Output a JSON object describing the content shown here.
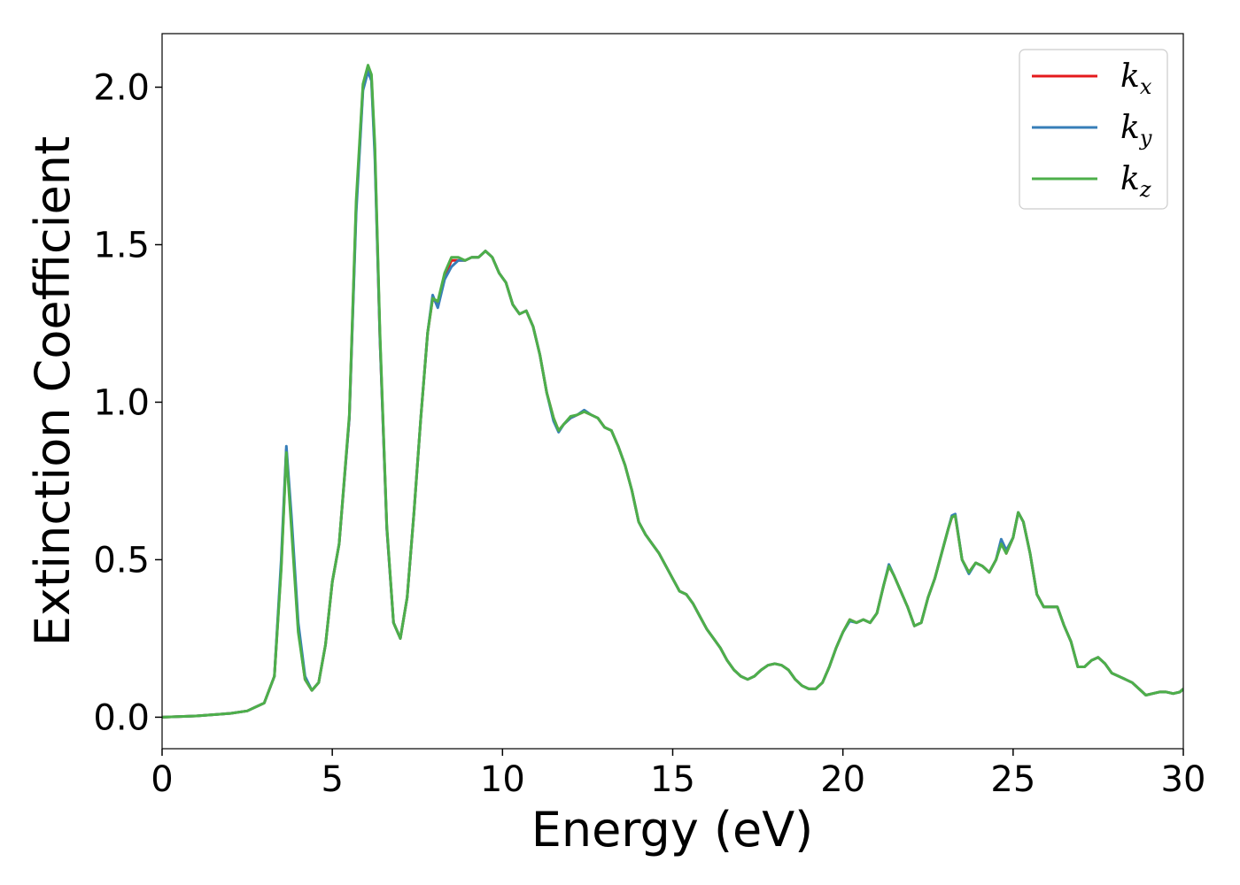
{
  "chart_data": {
    "type": "line",
    "title": "",
    "xlabel": "Energy (eV)",
    "ylabel": "Extinction Coefficient",
    "xlim": [
      0,
      30
    ],
    "ylim": [
      -0.1,
      2.17
    ],
    "xticks": [
      0,
      5,
      10,
      15,
      20,
      25,
      30
    ],
    "xtick_labels": [
      "0",
      "5",
      "10",
      "15",
      "20",
      "25",
      "30"
    ],
    "yticks": [
      0.0,
      0.5,
      1.0,
      1.5,
      2.0
    ],
    "ytick_labels": [
      "0.0",
      "0.5",
      "1.0",
      "1.5",
      "2.0"
    ],
    "grid": false,
    "legend_position": "top-right",
    "x": [
      0,
      1,
      2,
      2.5,
      3,
      3.3,
      3.5,
      3.65,
      3.8,
      4.0,
      4.2,
      4.4,
      4.6,
      4.8,
      5.0,
      5.2,
      5.5,
      5.7,
      5.9,
      6.05,
      6.15,
      6.25,
      6.4,
      6.6,
      6.8,
      7.0,
      7.2,
      7.4,
      7.6,
      7.8,
      7.95,
      8.1,
      8.3,
      8.5,
      8.7,
      8.9,
      9.1,
      9.3,
      9.5,
      9.7,
      9.9,
      10.1,
      10.3,
      10.5,
      10.7,
      10.9,
      11.1,
      11.3,
      11.5,
      11.65,
      11.8,
      12.0,
      12.2,
      12.4,
      12.6,
      12.8,
      13.0,
      13.2,
      13.4,
      13.6,
      13.8,
      14.0,
      14.2,
      14.4,
      14.6,
      14.8,
      15.0,
      15.2,
      15.4,
      15.6,
      15.8,
      16.0,
      16.2,
      16.4,
      16.6,
      16.8,
      17.0,
      17.2,
      17.4,
      17.6,
      17.8,
      18.0,
      18.2,
      18.4,
      18.6,
      18.8,
      19.0,
      19.2,
      19.4,
      19.6,
      19.8,
      20.0,
      20.2,
      20.4,
      20.6,
      20.8,
      21.0,
      21.2,
      21.35,
      21.5,
      21.7,
      21.9,
      22.1,
      22.3,
      22.5,
      22.7,
      22.9,
      23.1,
      23.2,
      23.3,
      23.5,
      23.7,
      23.9,
      24.1,
      24.3,
      24.5,
      24.65,
      24.8,
      25.0,
      25.15,
      25.3,
      25.5,
      25.7,
      25.9,
      26.1,
      26.3,
      26.5,
      26.7,
      26.9,
      27.1,
      27.3,
      27.5,
      27.7,
      27.9,
      28.1,
      28.3,
      28.5,
      28.7,
      28.9,
      29.1,
      29.3,
      29.5,
      29.7,
      29.9,
      30
    ],
    "series": [
      {
        "name": "k",
        "subscript": "x",
        "color": "#e41a1c",
        "values": [
          0.0,
          0.004,
          0.012,
          0.02,
          0.045,
          0.13,
          0.48,
          0.85,
          0.62,
          0.28,
          0.12,
          0.085,
          0.11,
          0.23,
          0.43,
          0.55,
          0.95,
          1.62,
          2.0,
          2.06,
          2.03,
          1.8,
          1.2,
          0.6,
          0.3,
          0.25,
          0.38,
          0.65,
          0.95,
          1.22,
          1.33,
          1.31,
          1.4,
          1.45,
          1.45,
          1.45,
          1.46,
          1.46,
          1.48,
          1.46,
          1.41,
          1.38,
          1.31,
          1.28,
          1.29,
          1.24,
          1.15,
          1.03,
          0.95,
          0.91,
          0.93,
          0.95,
          0.96,
          0.97,
          0.96,
          0.95,
          0.92,
          0.91,
          0.86,
          0.8,
          0.72,
          0.62,
          0.58,
          0.55,
          0.52,
          0.48,
          0.44,
          0.4,
          0.39,
          0.36,
          0.32,
          0.28,
          0.25,
          0.22,
          0.18,
          0.15,
          0.13,
          0.12,
          0.13,
          0.15,
          0.165,
          0.17,
          0.165,
          0.15,
          0.12,
          0.1,
          0.09,
          0.09,
          0.11,
          0.16,
          0.22,
          0.27,
          0.31,
          0.3,
          0.31,
          0.3,
          0.33,
          0.42,
          0.48,
          0.45,
          0.4,
          0.35,
          0.29,
          0.3,
          0.38,
          0.44,
          0.52,
          0.6,
          0.635,
          0.64,
          0.5,
          0.46,
          0.49,
          0.48,
          0.46,
          0.5,
          0.56,
          0.52,
          0.57,
          0.65,
          0.62,
          0.52,
          0.39,
          0.35,
          0.35,
          0.35,
          0.29,
          0.24,
          0.16,
          0.16,
          0.18,
          0.19,
          0.17,
          0.14,
          0.13,
          0.12,
          0.11,
          0.09,
          0.07,
          0.075,
          0.08,
          0.08,
          0.075,
          0.08,
          0.09
        ]
      },
      {
        "name": "k",
        "subscript": "y",
        "color": "#377eb8",
        "values": [
          0.0,
          0.004,
          0.012,
          0.02,
          0.045,
          0.13,
          0.5,
          0.86,
          0.64,
          0.3,
          0.13,
          0.085,
          0.11,
          0.23,
          0.43,
          0.55,
          0.95,
          1.6,
          1.99,
          2.05,
          2.02,
          1.78,
          1.2,
          0.6,
          0.3,
          0.25,
          0.38,
          0.65,
          0.95,
          1.22,
          1.34,
          1.3,
          1.39,
          1.43,
          1.45,
          1.45,
          1.46,
          1.46,
          1.48,
          1.46,
          1.41,
          1.38,
          1.31,
          1.28,
          1.29,
          1.24,
          1.15,
          1.03,
          0.94,
          0.905,
          0.93,
          0.95,
          0.96,
          0.975,
          0.96,
          0.95,
          0.92,
          0.91,
          0.86,
          0.8,
          0.72,
          0.62,
          0.58,
          0.55,
          0.52,
          0.48,
          0.44,
          0.4,
          0.39,
          0.36,
          0.32,
          0.28,
          0.25,
          0.22,
          0.18,
          0.15,
          0.13,
          0.12,
          0.13,
          0.15,
          0.165,
          0.17,
          0.165,
          0.15,
          0.12,
          0.1,
          0.09,
          0.09,
          0.11,
          0.16,
          0.22,
          0.27,
          0.305,
          0.3,
          0.31,
          0.3,
          0.33,
          0.42,
          0.485,
          0.45,
          0.4,
          0.35,
          0.29,
          0.3,
          0.38,
          0.44,
          0.52,
          0.6,
          0.64,
          0.645,
          0.5,
          0.455,
          0.49,
          0.48,
          0.46,
          0.5,
          0.565,
          0.53,
          0.57,
          0.65,
          0.62,
          0.52,
          0.39,
          0.35,
          0.35,
          0.35,
          0.29,
          0.24,
          0.16,
          0.16,
          0.18,
          0.19,
          0.17,
          0.14,
          0.13,
          0.12,
          0.11,
          0.09,
          0.07,
          0.075,
          0.08,
          0.08,
          0.075,
          0.08,
          0.09
        ]
      },
      {
        "name": "k",
        "subscript": "z",
        "color": "#4daf4a",
        "values": [
          0.0,
          0.004,
          0.012,
          0.02,
          0.045,
          0.13,
          0.47,
          0.84,
          0.6,
          0.27,
          0.12,
          0.085,
          0.11,
          0.23,
          0.43,
          0.55,
          0.96,
          1.64,
          2.01,
          2.07,
          2.04,
          1.82,
          1.22,
          0.61,
          0.3,
          0.25,
          0.38,
          0.65,
          0.95,
          1.22,
          1.33,
          1.32,
          1.41,
          1.46,
          1.46,
          1.45,
          1.46,
          1.46,
          1.48,
          1.46,
          1.41,
          1.38,
          1.31,
          1.28,
          1.29,
          1.24,
          1.15,
          1.03,
          0.95,
          0.91,
          0.93,
          0.955,
          0.96,
          0.97,
          0.96,
          0.95,
          0.92,
          0.91,
          0.86,
          0.8,
          0.72,
          0.62,
          0.58,
          0.55,
          0.52,
          0.48,
          0.44,
          0.4,
          0.39,
          0.36,
          0.32,
          0.28,
          0.25,
          0.22,
          0.18,
          0.15,
          0.13,
          0.12,
          0.13,
          0.15,
          0.165,
          0.17,
          0.165,
          0.15,
          0.12,
          0.1,
          0.09,
          0.09,
          0.11,
          0.16,
          0.22,
          0.27,
          0.31,
          0.3,
          0.31,
          0.3,
          0.33,
          0.42,
          0.48,
          0.45,
          0.4,
          0.35,
          0.29,
          0.3,
          0.38,
          0.44,
          0.52,
          0.6,
          0.635,
          0.64,
          0.5,
          0.46,
          0.49,
          0.48,
          0.46,
          0.5,
          0.55,
          0.52,
          0.57,
          0.65,
          0.62,
          0.52,
          0.39,
          0.35,
          0.35,
          0.35,
          0.29,
          0.24,
          0.16,
          0.16,
          0.18,
          0.19,
          0.17,
          0.14,
          0.13,
          0.12,
          0.11,
          0.09,
          0.07,
          0.075,
          0.08,
          0.08,
          0.075,
          0.08,
          0.09
        ]
      }
    ]
  }
}
